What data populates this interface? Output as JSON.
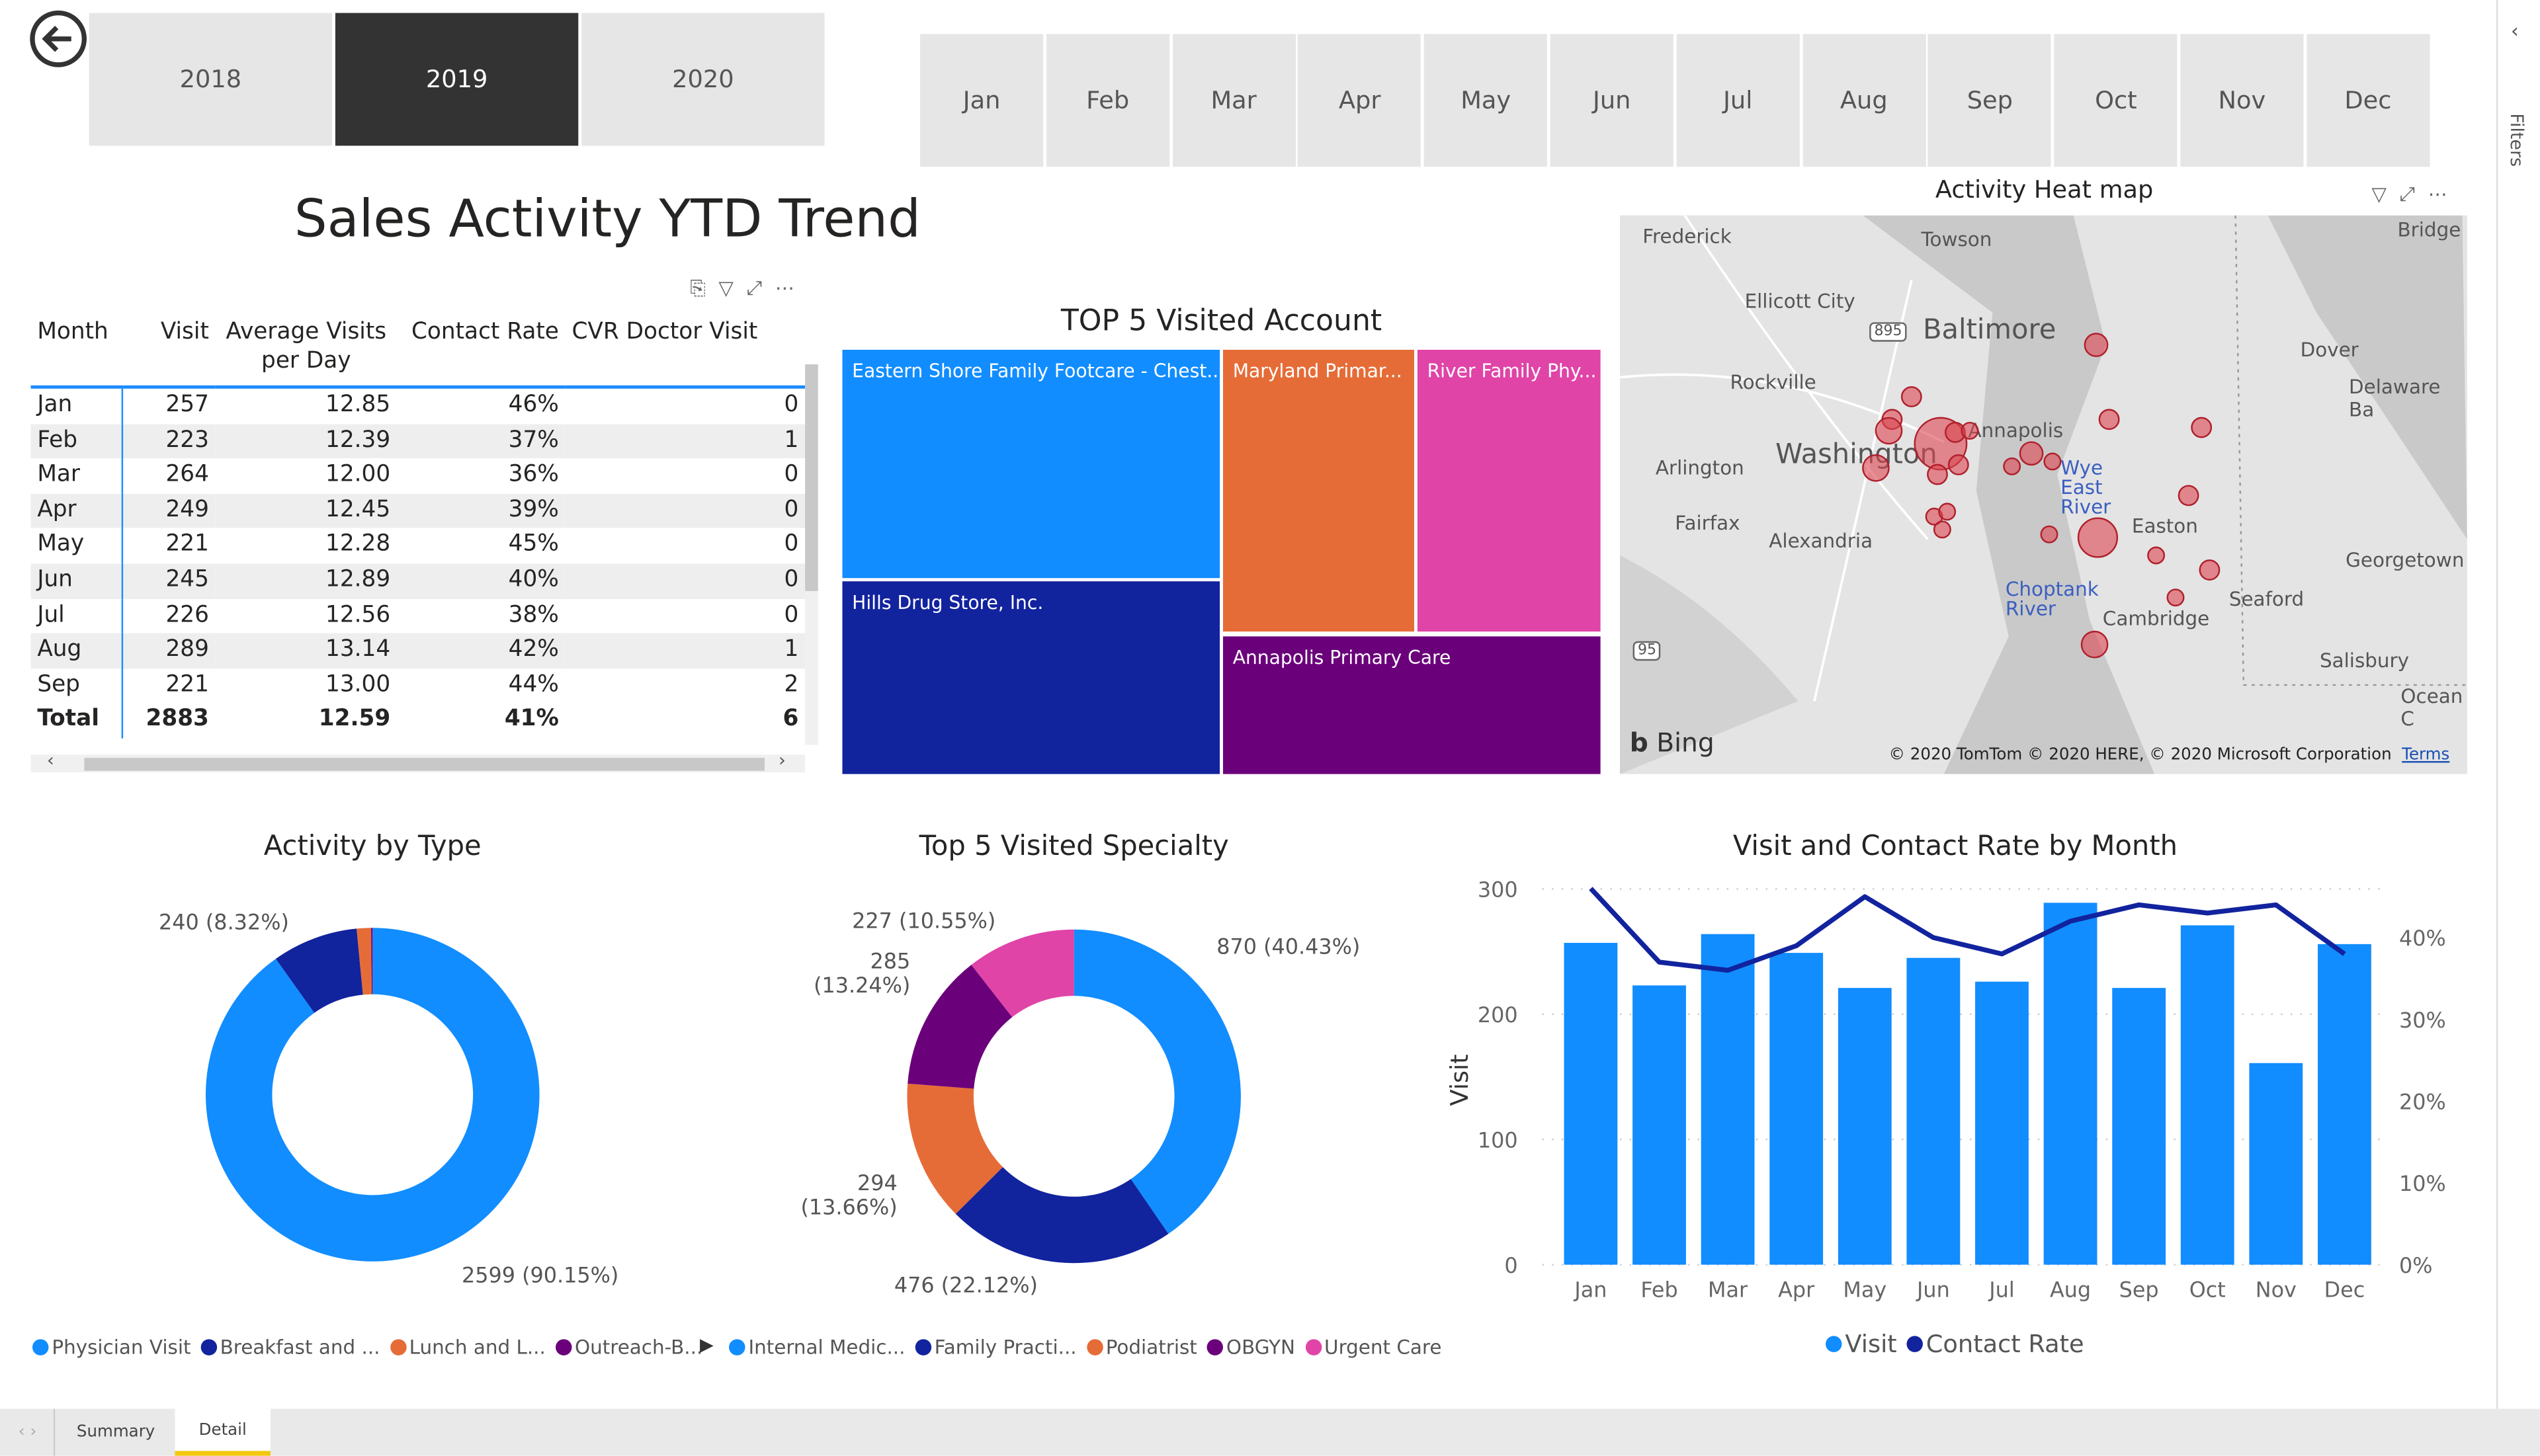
{
  "years": {
    "items": [
      "2018",
      "2019",
      "2020"
    ],
    "selected": "2019"
  },
  "months": [
    "Jan",
    "Feb",
    "Mar",
    "Apr",
    "May",
    "Jun",
    "Jul",
    "Aug",
    "Sep",
    "Oct",
    "Nov",
    "Dec"
  ],
  "filters_pane": {
    "label": "Filters"
  },
  "table": {
    "title": "Sales Activity YTD Trend",
    "headers": [
      "Month",
      "Visit",
      "Average Visits per Day",
      "Contact Rate",
      "CVR Doctor Visit"
    ],
    "rows": [
      [
        "Jan",
        "257",
        "12.85",
        "46%",
        "0"
      ],
      [
        "Feb",
        "223",
        "12.39",
        "37%",
        "1"
      ],
      [
        "Mar",
        "264",
        "12.00",
        "36%",
        "0"
      ],
      [
        "Apr",
        "249",
        "12.45",
        "39%",
        "0"
      ],
      [
        "May",
        "221",
        "12.28",
        "45%",
        "0"
      ],
      [
        "Jun",
        "245",
        "12.89",
        "40%",
        "0"
      ],
      [
        "Jul",
        "226",
        "12.56",
        "38%",
        "0"
      ],
      [
        "Aug",
        "289",
        "13.14",
        "42%",
        "1"
      ],
      [
        "Sep",
        "221",
        "13.00",
        "44%",
        "2"
      ]
    ],
    "total": [
      "Total",
      "2883",
      "12.59",
      "41%",
      "6"
    ]
  },
  "treemap": {
    "title": "TOP 5 Visited Account",
    "items": [
      {
        "label": "Eastern Shore Family Footcare - Chest...",
        "color": "#118dff"
      },
      {
        "label": "Hills Drug Store, Inc.",
        "color": "#12239e"
      },
      {
        "label": "Maryland Primar...",
        "color": "#e66c37"
      },
      {
        "label": "River Family Phy...",
        "color": "#e044a7"
      },
      {
        "label": "Annapolis Primary Care",
        "color": "#6b007b"
      }
    ]
  },
  "map": {
    "title": "Activity Heat map",
    "places": [
      "Frederick",
      "Towson",
      "Ellicott City",
      "Baltimore",
      "Rockville",
      "Washington",
      "Annapolis",
      "Arlington",
      "Fairfax",
      "Alexandria",
      "Wye East River",
      "Easton",
      "Choptank River",
      "Cambridge",
      "Seaford",
      "Georgetown",
      "Dover",
      "Delaware Ba",
      "Bridge",
      "Salisbury",
      "Ocean C"
    ],
    "shields": [
      "895",
      "95"
    ],
    "logo": "Bing",
    "attribution": "© 2020 TomTom © 2020 HERE, © 2020 Microsoft Corporation",
    "terms": "Terms"
  },
  "chart_data": [
    {
      "type": "pie",
      "title": "Activity by Type",
      "donut": true,
      "categories": [
        "Physician Visit",
        "Breakfast and ...",
        "Lunch and L...",
        "Outreach-B..."
      ],
      "values": [
        2599,
        240,
        40,
        4
      ],
      "colors": [
        "#118dff",
        "#12239e",
        "#e66c37",
        "#6b007b"
      ],
      "data_labels": [
        "2599 (90.15%)",
        "240 (8.32%)",
        "",
        ""
      ],
      "legend": "bottom-left"
    },
    {
      "type": "pie",
      "title": "Top 5 Visited Specialty",
      "donut": true,
      "categories": [
        "Internal Medic...",
        "Family Practi...",
        "Podiatrist",
        "OBGYN",
        "Urgent Care"
      ],
      "values": [
        870,
        476,
        294,
        285,
        227
      ],
      "colors": [
        "#118dff",
        "#12239e",
        "#e66c37",
        "#6b007b",
        "#e044a7"
      ],
      "data_labels": [
        "870 (40.43%)",
        "476 (22.12%)",
        "294 (13.66%)",
        "285 (13.24%)",
        "227 (10.55%)"
      ],
      "legend": "bottom"
    },
    {
      "type": "bar",
      "title": "Visit and Contact Rate by Month",
      "categories": [
        "Jan",
        "Feb",
        "Mar",
        "Apr",
        "May",
        "Jun",
        "Jul",
        "Aug",
        "Sep",
        "Oct",
        "Nov",
        "Dec"
      ],
      "series": [
        {
          "name": "Visit",
          "type": "bar",
          "values": [
            257,
            223,
            264,
            249,
            221,
            245,
            226,
            289,
            221,
            271,
            161,
            256
          ],
          "color": "#118dff"
        },
        {
          "name": "Contact Rate",
          "type": "line",
          "values": [
            46,
            37,
            36,
            39,
            45,
            40,
            38,
            42,
            44,
            43,
            44,
            38
          ],
          "color": "#12239e"
        }
      ],
      "ylabel": "Visit",
      "ylim": [
        0,
        300
      ],
      "yticks": [
        "0",
        "100",
        "200",
        "300"
      ],
      "y2lim": [
        0,
        46
      ],
      "y2ticks": [
        "0%",
        "10%",
        "20%",
        "30%",
        "40%"
      ],
      "grid": true,
      "legend": "bottom"
    }
  ],
  "pages": {
    "tabs": [
      "Summary",
      "Detail"
    ],
    "active": "Detail"
  }
}
